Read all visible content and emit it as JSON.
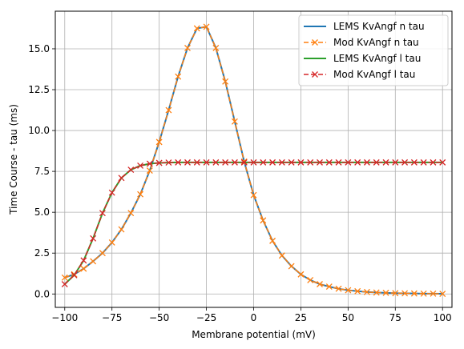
{
  "chart_data": {
    "type": "line",
    "title": "",
    "xlabel": "Membrane potential (mV)",
    "ylabel": "Time Course - tau (ms)",
    "xlim": [
      -105,
      105
    ],
    "ylim": [
      -0.82,
      17.3
    ],
    "xticks": [
      -100,
      -75,
      -50,
      -25,
      0,
      25,
      50,
      75,
      100
    ],
    "xtick_labels": [
      "−100",
      "−75",
      "−50",
      "−25",
      "0",
      "25",
      "50",
      "75",
      "100"
    ],
    "yticks": [
      0,
      2.5,
      5,
      7.5,
      10,
      12.5,
      15
    ],
    "ytick_labels": [
      "0.0",
      "2.5",
      "5.0",
      "7.5",
      "10.0",
      "12.5",
      "15.0"
    ],
    "grid": true,
    "legend_position": "top-right",
    "colors": {
      "lems_n": "#1f77b4",
      "mod_n": "#ff7f0e",
      "lems_l": "#2ca02c",
      "mod_l": "#d62728",
      "grid": "#b0b0b0"
    },
    "x": [
      -100,
      -95,
      -90,
      -85,
      -80,
      -75,
      -70,
      -65,
      -60,
      -55,
      -50,
      -45,
      -40,
      -35,
      -30,
      -25,
      -20,
      -15,
      -10,
      -5,
      0,
      5,
      10,
      15,
      20,
      25,
      30,
      35,
      40,
      45,
      50,
      55,
      60,
      65,
      70,
      75,
      80,
      85,
      90,
      95,
      100
    ],
    "series": [
      {
        "name": "LEMS KvAngf n tau",
        "style": "solid",
        "values": [
          1.0,
          1.2,
          1.55,
          2.0,
          2.5,
          3.15,
          3.95,
          4.95,
          6.1,
          7.55,
          9.3,
          11.25,
          13.3,
          15.05,
          16.25,
          16.35,
          15.05,
          13.0,
          10.55,
          8.1,
          6.05,
          4.5,
          3.25,
          2.35,
          1.7,
          1.2,
          0.85,
          0.6,
          0.45,
          0.32,
          0.23,
          0.17,
          0.12,
          0.09,
          0.07,
          0.05,
          0.04,
          0.03,
          0.02,
          0.02,
          0.01
        ]
      },
      {
        "name": "Mod KvAngf n tau",
        "style": "dashed-x",
        "values": [
          1.0,
          1.2,
          1.55,
          2.0,
          2.5,
          3.15,
          3.95,
          4.95,
          6.1,
          7.55,
          9.3,
          11.25,
          13.3,
          15.05,
          16.25,
          16.35,
          15.05,
          13.0,
          10.55,
          8.1,
          6.05,
          4.5,
          3.25,
          2.35,
          1.7,
          1.2,
          0.85,
          0.6,
          0.45,
          0.32,
          0.23,
          0.17,
          0.12,
          0.09,
          0.07,
          0.05,
          0.04,
          0.03,
          0.02,
          0.02,
          0.01
        ]
      },
      {
        "name": "LEMS KvAngf l tau",
        "style": "solid",
        "values": [
          0.6,
          1.15,
          2.05,
          3.4,
          4.95,
          6.2,
          7.1,
          7.6,
          7.85,
          7.97,
          8.02,
          8.04,
          8.05,
          8.05,
          8.05,
          8.05,
          8.05,
          8.05,
          8.05,
          8.05,
          8.05,
          8.05,
          8.05,
          8.05,
          8.05,
          8.05,
          8.05,
          8.05,
          8.05,
          8.05,
          8.05,
          8.05,
          8.05,
          8.05,
          8.05,
          8.05,
          8.05,
          8.05,
          8.05,
          8.05,
          8.05
        ]
      },
      {
        "name": "Mod KvAngf l tau",
        "style": "dashed-x",
        "values": [
          0.6,
          1.15,
          2.05,
          3.4,
          4.95,
          6.2,
          7.1,
          7.6,
          7.85,
          7.97,
          8.02,
          8.04,
          8.05,
          8.05,
          8.05,
          8.05,
          8.05,
          8.05,
          8.05,
          8.05,
          8.05,
          8.05,
          8.05,
          8.05,
          8.05,
          8.05,
          8.05,
          8.05,
          8.05,
          8.05,
          8.05,
          8.05,
          8.05,
          8.05,
          8.05,
          8.05,
          8.05,
          8.05,
          8.05,
          8.05,
          8.05
        ]
      }
    ]
  }
}
